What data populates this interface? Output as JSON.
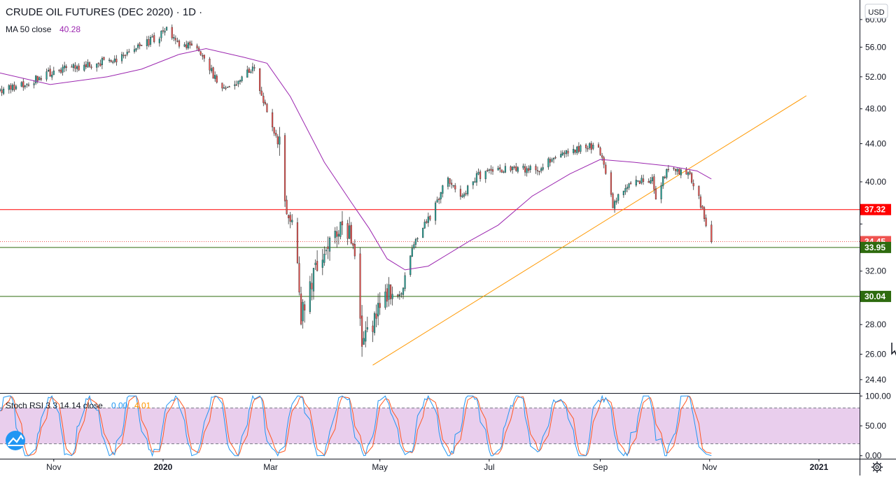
{
  "header": {
    "title": "CRUDE OIL FUTURES (DEC 2020) · 1D ·",
    "ma_label": "MA 50 close",
    "ma_value": "40.28",
    "currency": "USD"
  },
  "oscillator": {
    "label": "Stoch RSI 3 3 14 14 close",
    "k_value": "0.00",
    "d_value": "4.01"
  },
  "colors": {
    "up": "#26a69a",
    "down": "#ef5350",
    "ma": "#9c27b0",
    "trendline": "#ff9800",
    "resistance": "#ff0000",
    "support": "#2e6b0f",
    "k_line": "#2196f3",
    "d_line": "#ff5722",
    "band_fill": "#e1bee7"
  },
  "chart_data": [
    {
      "type": "candlestick",
      "title": "CRUDE OIL FUTURES (DEC 2020) · 1D ·",
      "y_axis_ticks": [
        24.4,
        26.0,
        28.0,
        30.0,
        32.0,
        36.0,
        40.0,
        44.0,
        48.0,
        52.0,
        56.0,
        60.0
      ],
      "y_tick_labels": [
        "24.40",
        "26.00",
        "28.00",
        "",
        "32.00",
        "",
        "40.00",
        "44.00",
        "48.00",
        "52.00",
        "56.00",
        "60.00"
      ],
      "ylim": [
        23.6,
        63.0
      ],
      "y_scale": "log",
      "x_tick_labels": [
        "Nov",
        "2020",
        "Mar",
        "May",
        "Jul",
        "Sep",
        "Nov",
        "2021"
      ],
      "x_tick_dates": [
        "2019-11-01",
        "2020-01-01",
        "2020-03-01",
        "2020-05-01",
        "2020-07-01",
        "2020-09-01",
        "2020-11-01",
        "2021-01-01"
      ],
      "xlim": [
        "2019-10-02",
        "2021-02-13"
      ],
      "price_keypoints": [
        [
          "2019-10-02",
          50.2
        ],
        [
          "2019-10-20",
          51.5
        ],
        [
          "2019-11-01",
          52.8
        ],
        [
          "2019-11-20",
          53.6
        ],
        [
          "2019-12-05",
          54.3
        ],
        [
          "2019-12-15",
          55.6
        ],
        [
          "2019-12-30",
          57.5
        ],
        [
          "2020-01-03",
          58.8
        ],
        [
          "2020-01-08",
          56.5
        ],
        [
          "2020-01-20",
          55.8
        ],
        [
          "2020-01-31",
          51.5
        ],
        [
          "2020-02-08",
          50.2
        ],
        [
          "2020-02-20",
          53.4
        ],
        [
          "2020-02-28",
          47.8
        ],
        [
          "2020-03-06",
          43.8
        ],
        [
          "2020-03-09",
          38.0
        ],
        [
          "2020-03-16",
          33.5
        ],
        [
          "2020-03-18",
          28.5
        ],
        [
          "2020-03-25",
          31.8
        ],
        [
          "2020-04-02",
          33.8
        ],
        [
          "2020-04-10",
          36.5
        ],
        [
          "2020-04-16",
          34.2
        ],
        [
          "2020-04-21",
          27.2
        ],
        [
          "2020-04-28",
          28.4
        ],
        [
          "2020-05-05",
          30.5
        ],
        [
          "2020-05-13",
          30.2
        ],
        [
          "2020-05-20",
          34.5
        ],
        [
          "2020-05-29",
          36.6
        ],
        [
          "2020-06-08",
          40.4
        ],
        [
          "2020-06-15",
          38.4
        ],
        [
          "2020-06-24",
          40.6
        ],
        [
          "2020-07-10",
          41.2
        ],
        [
          "2020-07-30",
          41.4
        ],
        [
          "2020-08-10",
          43.0
        ],
        [
          "2020-08-26",
          43.8
        ],
        [
          "2020-09-01",
          43.2
        ],
        [
          "2020-09-08",
          37.8
        ],
        [
          "2020-09-15",
          39.6
        ],
        [
          "2020-09-30",
          40.4
        ],
        [
          "2020-10-02",
          38.0
        ],
        [
          "2020-10-08",
          41.2
        ],
        [
          "2020-10-20",
          41.0
        ],
        [
          "2020-10-26",
          38.6
        ],
        [
          "2020-10-30",
          35.8
        ],
        [
          "2020-11-02",
          34.45
        ]
      ],
      "series": [
        {
          "name": "MA 50 close",
          "points": [
            [
              "2019-10-02",
              52.5
            ],
            [
              "2019-10-30",
              51.0
            ],
            [
              "2019-12-01",
              52.0
            ],
            [
              "2019-12-20",
              53.0
            ],
            [
              "2020-01-10",
              55.0
            ],
            [
              "2020-01-25",
              55.8
            ],
            [
              "2020-02-15",
              54.6
            ],
            [
              "2020-02-28",
              53.8
            ],
            [
              "2020-03-12",
              49.5
            ],
            [
              "2020-03-31",
              42.0
            ],
            [
              "2020-04-15",
              38.0
            ],
            [
              "2020-04-25",
              35.6
            ],
            [
              "2020-05-05",
              33.0
            ],
            [
              "2020-05-15",
              32.1
            ],
            [
              "2020-05-28",
              32.4
            ],
            [
              "2020-06-20",
              34.5
            ],
            [
              "2020-07-06",
              35.9
            ],
            [
              "2020-07-25",
              38.6
            ],
            [
              "2020-08-15",
              40.8
            ],
            [
              "2020-09-01",
              42.3
            ],
            [
              "2020-09-20",
              42.0
            ],
            [
              "2020-10-10",
              41.6
            ],
            [
              "2020-10-25",
              41.1
            ],
            [
              "2020-11-02",
              40.28
            ]
          ]
        }
      ],
      "trendline": {
        "from": [
          "2020-04-27",
          25.3
        ],
        "to": [
          "2020-12-25",
          49.6
        ]
      },
      "horizontal_lines": [
        {
          "label": "37.32",
          "value": 37.32,
          "style": "solid-red"
        },
        {
          "label": "34.45",
          "value": 34.45,
          "style": "dotted-red"
        },
        {
          "label": "33.95",
          "value": 33.95,
          "style": "solid-green"
        },
        {
          "label": "30.04",
          "value": 30.04,
          "style": "solid-green"
        }
      ],
      "y_badges": [
        {
          "label": "37.32",
          "value": 37.32,
          "color": "#ff0000"
        },
        {
          "label": "34.45",
          "value": 34.45,
          "color": "#ef5350"
        },
        {
          "label": "33.95",
          "value": 33.95,
          "color": "#2e6b0f"
        },
        {
          "label": "30.04",
          "value": 30.04,
          "color": "#2e6b0f"
        }
      ],
      "last_price": 34.45
    },
    {
      "type": "line",
      "title": "Stoch RSI 3 3 14 14 close",
      "ylim": [
        -5,
        105
      ],
      "y_axis_ticks": [
        0,
        50,
        100
      ],
      "y_tick_labels": [
        "0.00",
        "50.00",
        "100.00"
      ],
      "band": [
        20,
        80
      ],
      "series": [
        {
          "name": "K",
          "value": 0.0
        },
        {
          "name": "D",
          "value": 4.01
        }
      ]
    }
  ]
}
